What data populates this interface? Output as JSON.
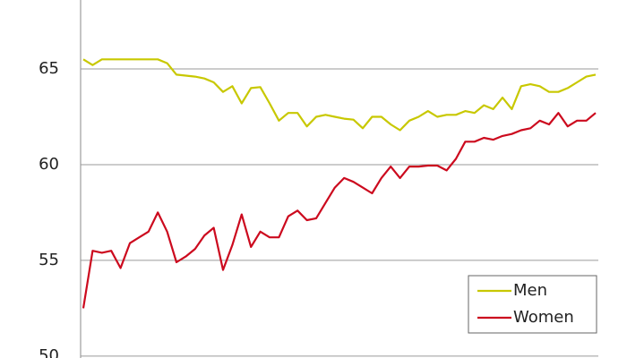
{
  "chart_data": {
    "type": "line",
    "categories": [
      null,
      null,
      null,
      null,
      null,
      null,
      null,
      null,
      null,
      null,
      null,
      null,
      null,
      null,
      null,
      null,
      null,
      null,
      null,
      null,
      null,
      null,
      null,
      null,
      null,
      null,
      null,
      null,
      null,
      null,
      null,
      null,
      null,
      null,
      null,
      null,
      null,
      null,
      null,
      null,
      null,
      null,
      null,
      null,
      null,
      null,
      null,
      null,
      null,
      null,
      null,
      null,
      null,
      null,
      null,
      null
    ],
    "series": [
      {
        "name": "Men",
        "color": "#c8c800",
        "values": [
          65.5,
          65.2,
          65.5,
          65.5,
          65.5,
          65.5,
          65.5,
          65.5,
          65.5,
          65.3,
          64.7,
          64.65,
          64.6,
          64.5,
          64.3,
          63.8,
          64.1,
          63.2,
          64.0,
          64.05,
          63.2,
          62.3,
          62.7,
          62.7,
          62.0,
          62.5,
          62.6,
          62.5,
          62.4,
          62.35,
          61.9,
          62.5,
          62.5,
          62.1,
          61.8,
          62.3,
          62.5,
          62.8,
          62.5,
          62.6,
          62.6,
          62.8,
          62.7,
          63.1,
          62.9,
          63.5,
          62.9,
          64.1,
          64.2,
          64.1,
          63.8,
          63.8,
          64.0,
          64.3,
          64.6,
          64.7
        ]
      },
      {
        "name": "Women",
        "color": "#cc0a1e",
        "values": [
          52.5,
          55.5,
          55.4,
          55.5,
          54.6,
          55.9,
          56.2,
          56.5,
          57.5,
          56.5,
          54.9,
          55.2,
          55.6,
          56.3,
          56.7,
          54.5,
          55.8,
          57.4,
          55.7,
          56.5,
          56.2,
          56.2,
          57.3,
          57.6,
          57.1,
          57.2,
          58.0,
          58.8,
          59.3,
          59.1,
          58.8,
          58.5,
          59.3,
          59.9,
          59.3,
          59.9,
          59.9,
          59.95,
          59.95,
          59.7,
          60.3,
          61.2,
          61.2,
          61.4,
          61.3,
          61.5,
          61.6,
          61.8,
          61.9,
          62.3,
          62.1,
          62.7,
          62.0,
          62.3,
          62.3,
          62.7
        ]
      }
    ],
    "ylim": [
      49.9,
      68.6
    ],
    "yticks": [
      50,
      55,
      60,
      65
    ],
    "grid": true,
    "legend": "lower right"
  }
}
